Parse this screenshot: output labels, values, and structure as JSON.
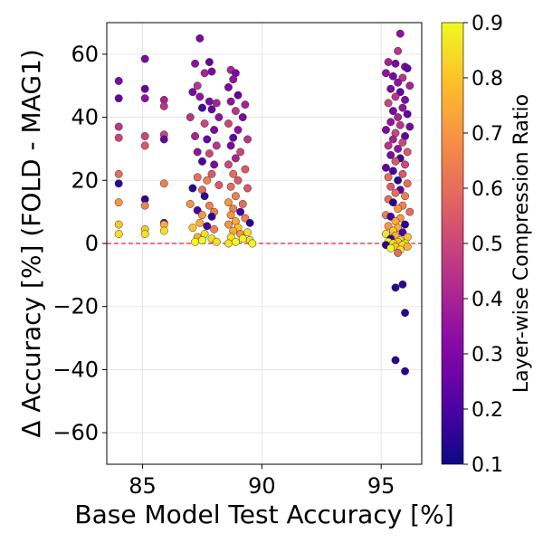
{
  "chart_data": {
    "type": "scatter",
    "xlabel": "Base Model Test Accuracy [%]",
    "ylabel": "Δ Accuracy [%] (FOLD - MAG1)",
    "xlim": [
      83.5,
      96.7
    ],
    "ylim": [
      -70,
      70
    ],
    "xticks": [
      85,
      90,
      95
    ],
    "yticks": [
      60,
      40,
      20,
      0,
      -20,
      -40,
      -60
    ],
    "grid": true,
    "reference_line": {
      "y": 0,
      "color": "#e8232a",
      "style": "dashed"
    },
    "colorbar": {
      "label": "Layer-wise Compression Ratio",
      "range": [
        0.1,
        0.9
      ],
      "ticks": [
        0.9,
        0.8,
        0.7,
        0.6,
        0.5,
        0.4,
        0.3,
        0.2,
        0.1
      ],
      "colormap": "plasma",
      "stops": [
        "#0d0887",
        "#5302a3",
        "#8b0aa5",
        "#b83289",
        "#db5c68",
        "#f48849",
        "#febd2a",
        "#f0f921"
      ]
    },
    "points": [
      {
        "x": 84.0,
        "y": 51.5,
        "c": 0.3
      },
      {
        "x": 84.0,
        "y": 46.0,
        "c": 0.25
      },
      {
        "x": 84.0,
        "y": 37.0,
        "c": 0.45
      },
      {
        "x": 84.0,
        "y": 33.5,
        "c": 0.5
      },
      {
        "x": 84.0,
        "y": 22.0,
        "c": 0.6
      },
      {
        "x": 84.0,
        "y": 19.0,
        "c": 0.15
      },
      {
        "x": 84.0,
        "y": 13.0,
        "c": 0.7
      },
      {
        "x": 84.0,
        "y": 6.0,
        "c": 0.8
      },
      {
        "x": 84.0,
        "y": 3.0,
        "c": 0.85
      },
      {
        "x": 85.1,
        "y": 58.5,
        "c": 0.3
      },
      {
        "x": 85.1,
        "y": 49.0,
        "c": 0.25
      },
      {
        "x": 85.1,
        "y": 46.0,
        "c": 0.35
      },
      {
        "x": 85.1,
        "y": 34.0,
        "c": 0.5
      },
      {
        "x": 85.1,
        "y": 31.0,
        "c": 0.55
      },
      {
        "x": 85.1,
        "y": 14.0,
        "c": 0.15
      },
      {
        "x": 85.1,
        "y": 12.0,
        "c": 0.65
      },
      {
        "x": 85.1,
        "y": 4.5,
        "c": 0.8
      },
      {
        "x": 85.1,
        "y": 3.0,
        "c": 0.85
      },
      {
        "x": 85.9,
        "y": 45.5,
        "c": 0.4
      },
      {
        "x": 85.9,
        "y": 43.5,
        "c": 0.45
      },
      {
        "x": 85.9,
        "y": 34.5,
        "c": 0.5
      },
      {
        "x": 85.9,
        "y": 33.0,
        "c": 0.25
      },
      {
        "x": 85.9,
        "y": 19.0,
        "c": 0.65
      },
      {
        "x": 85.9,
        "y": 6.5,
        "c": 0.2
      },
      {
        "x": 85.9,
        "y": 6.0,
        "c": 0.75
      },
      {
        "x": 85.9,
        "y": 4.0,
        "c": 0.85
      },
      {
        "x": 87.4,
        "y": 65.0,
        "c": 0.3
      },
      {
        "x": 87.2,
        "y": 57.0,
        "c": 0.35
      },
      {
        "x": 87.8,
        "y": 57.5,
        "c": 0.25
      },
      {
        "x": 87.6,
        "y": 54.0,
        "c": 0.4
      },
      {
        "x": 87.9,
        "y": 54.5,
        "c": 0.3
      },
      {
        "x": 87.3,
        "y": 50.0,
        "c": 0.45
      },
      {
        "x": 87.1,
        "y": 48.0,
        "c": 0.3
      },
      {
        "x": 87.4,
        "y": 46.5,
        "c": 0.35
      },
      {
        "x": 87.8,
        "y": 45.0,
        "c": 0.3
      },
      {
        "x": 88.1,
        "y": 44.5,
        "c": 0.4
      },
      {
        "x": 87.5,
        "y": 43.0,
        "c": 0.2
      },
      {
        "x": 87.9,
        "y": 42.5,
        "c": 0.25
      },
      {
        "x": 88.2,
        "y": 40.0,
        "c": 0.35
      },
      {
        "x": 87.0,
        "y": 40.0,
        "c": 0.45
      },
      {
        "x": 87.6,
        "y": 38.0,
        "c": 0.5
      },
      {
        "x": 88.0,
        "y": 36.0,
        "c": 0.3
      },
      {
        "x": 87.2,
        "y": 34.0,
        "c": 0.4
      },
      {
        "x": 87.7,
        "y": 33.0,
        "c": 0.25
      },
      {
        "x": 88.1,
        "y": 31.0,
        "c": 0.45
      },
      {
        "x": 87.3,
        "y": 29.0,
        "c": 0.35
      },
      {
        "x": 87.8,
        "y": 28.5,
        "c": 0.5
      },
      {
        "x": 87.5,
        "y": 26.0,
        "c": 0.2
      },
      {
        "x": 88.0,
        "y": 25.0,
        "c": 0.3
      },
      {
        "x": 87.9,
        "y": 22.0,
        "c": 0.55
      },
      {
        "x": 87.3,
        "y": 21.0,
        "c": 0.6
      },
      {
        "x": 87.7,
        "y": 20.0,
        "c": 0.65
      },
      {
        "x": 88.2,
        "y": 18.5,
        "c": 0.55
      },
      {
        "x": 87.1,
        "y": 17.5,
        "c": 0.15
      },
      {
        "x": 87.5,
        "y": 17.0,
        "c": 0.6
      },
      {
        "x": 87.6,
        "y": 15.0,
        "c": 0.15
      },
      {
        "x": 87.0,
        "y": 12.5,
        "c": 0.7
      },
      {
        "x": 87.8,
        "y": 12.0,
        "c": 0.65
      },
      {
        "x": 87.3,
        "y": 10.5,
        "c": 0.2
      },
      {
        "x": 88.0,
        "y": 10.0,
        "c": 0.65
      },
      {
        "x": 87.5,
        "y": 9.0,
        "c": 0.7
      },
      {
        "x": 87.9,
        "y": 8.5,
        "c": 0.15
      },
      {
        "x": 87.4,
        "y": 6.5,
        "c": 0.75
      },
      {
        "x": 87.7,
        "y": 5.5,
        "c": 0.2
      },
      {
        "x": 87.1,
        "y": 5.0,
        "c": 0.8
      },
      {
        "x": 88.0,
        "y": 4.5,
        "c": 0.65
      },
      {
        "x": 87.6,
        "y": 3.0,
        "c": 0.85
      },
      {
        "x": 87.3,
        "y": 2.0,
        "c": 0.75
      },
      {
        "x": 87.9,
        "y": 1.5,
        "c": 0.85
      },
      {
        "x": 87.5,
        "y": 1.0,
        "c": 0.9
      },
      {
        "x": 88.1,
        "y": 0.5,
        "c": 0.85
      },
      {
        "x": 87.2,
        "y": 0.5,
        "c": 0.9
      },
      {
        "x": 88.7,
        "y": 55.0,
        "c": 0.4
      },
      {
        "x": 88.9,
        "y": 54.0,
        "c": 0.3
      },
      {
        "x": 88.8,
        "y": 52.0,
        "c": 0.35
      },
      {
        "x": 88.6,
        "y": 49.5,
        "c": 0.3
      },
      {
        "x": 89.0,
        "y": 47.0,
        "c": 0.25
      },
      {
        "x": 88.7,
        "y": 45.0,
        "c": 0.35
      },
      {
        "x": 89.3,
        "y": 44.0,
        "c": 0.4
      },
      {
        "x": 88.9,
        "y": 42.0,
        "c": 0.45
      },
      {
        "x": 89.2,
        "y": 40.0,
        "c": 0.3
      },
      {
        "x": 88.6,
        "y": 38.0,
        "c": 0.5
      },
      {
        "x": 89.0,
        "y": 36.0,
        "c": 0.35
      },
      {
        "x": 88.8,
        "y": 33.5,
        "c": 0.25
      },
      {
        "x": 89.4,
        "y": 33.0,
        "c": 0.45
      },
      {
        "x": 88.7,
        "y": 31.0,
        "c": 0.3
      },
      {
        "x": 89.1,
        "y": 29.0,
        "c": 0.5
      },
      {
        "x": 88.9,
        "y": 27.0,
        "c": 0.4
      },
      {
        "x": 88.6,
        "y": 25.0,
        "c": 0.5
      },
      {
        "x": 89.3,
        "y": 23.5,
        "c": 0.55
      },
      {
        "x": 88.8,
        "y": 22.0,
        "c": 0.6
      },
      {
        "x": 89.0,
        "y": 20.0,
        "c": 0.55
      },
      {
        "x": 88.7,
        "y": 18.0,
        "c": 0.6
      },
      {
        "x": 89.4,
        "y": 17.5,
        "c": 0.55
      },
      {
        "x": 88.9,
        "y": 15.0,
        "c": 0.65
      },
      {
        "x": 88.6,
        "y": 13.0,
        "c": 0.7
      },
      {
        "x": 89.2,
        "y": 12.5,
        "c": 0.6
      },
      {
        "x": 88.8,
        "y": 11.0,
        "c": 0.65
      },
      {
        "x": 89.1,
        "y": 10.0,
        "c": 0.2
      },
      {
        "x": 88.7,
        "y": 9.0,
        "c": 0.7
      },
      {
        "x": 89.3,
        "y": 8.0,
        "c": 0.65
      },
      {
        "x": 88.9,
        "y": 7.0,
        "c": 0.75
      },
      {
        "x": 89.5,
        "y": 6.5,
        "c": 0.15
      },
      {
        "x": 88.6,
        "y": 6.0,
        "c": 0.7
      },
      {
        "x": 89.0,
        "y": 5.0,
        "c": 0.8
      },
      {
        "x": 88.8,
        "y": 4.0,
        "c": 0.75
      },
      {
        "x": 89.4,
        "y": 3.5,
        "c": 0.85
      },
      {
        "x": 89.1,
        "y": 3.0,
        "c": 0.7
      },
      {
        "x": 88.7,
        "y": 2.0,
        "c": 0.85
      },
      {
        "x": 89.2,
        "y": 1.5,
        "c": 0.9
      },
      {
        "x": 89.5,
        "y": 1.0,
        "c": 0.85
      },
      {
        "x": 88.9,
        "y": 0.5,
        "c": 0.9
      },
      {
        "x": 88.6,
        "y": 0.0,
        "c": 0.85
      },
      {
        "x": 89.6,
        "y": 0.0,
        "c": 0.9
      },
      {
        "x": 95.8,
        "y": 66.5,
        "c": 0.35
      },
      {
        "x": 95.7,
        "y": 61.0,
        "c": 0.45
      },
      {
        "x": 95.3,
        "y": 57.5,
        "c": 0.4
      },
      {
        "x": 95.6,
        "y": 57.0,
        "c": 0.3
      },
      {
        "x": 96.0,
        "y": 56.0,
        "c": 0.3
      },
      {
        "x": 96.1,
        "y": 55.5,
        "c": 0.25
      },
      {
        "x": 95.2,
        "y": 54.0,
        "c": 0.35
      },
      {
        "x": 95.5,
        "y": 53.0,
        "c": 0.3
      },
      {
        "x": 95.9,
        "y": 52.5,
        "c": 0.45
      },
      {
        "x": 95.7,
        "y": 51.0,
        "c": 0.35
      },
      {
        "x": 96.2,
        "y": 50.0,
        "c": 0.4
      },
      {
        "x": 95.4,
        "y": 49.0,
        "c": 0.3
      },
      {
        "x": 95.8,
        "y": 48.0,
        "c": 0.25
      },
      {
        "x": 95.6,
        "y": 46.5,
        "c": 0.45
      },
      {
        "x": 96.0,
        "y": 45.5,
        "c": 0.3
      },
      {
        "x": 95.3,
        "y": 44.5,
        "c": 0.5
      },
      {
        "x": 95.9,
        "y": 43.0,
        "c": 0.35
      },
      {
        "x": 95.5,
        "y": 42.0,
        "c": 0.3
      },
      {
        "x": 96.1,
        "y": 41.0,
        "c": 0.25
      },
      {
        "x": 95.7,
        "y": 40.0,
        "c": 0.4
      },
      {
        "x": 95.4,
        "y": 38.5,
        "c": 0.35
      },
      {
        "x": 95.8,
        "y": 37.5,
        "c": 0.45
      },
      {
        "x": 96.2,
        "y": 37.0,
        "c": 0.3
      },
      {
        "x": 95.2,
        "y": 36.0,
        "c": 0.3
      },
      {
        "x": 95.6,
        "y": 35.0,
        "c": 0.5
      },
      {
        "x": 96.0,
        "y": 34.0,
        "c": 0.25
      },
      {
        "x": 95.5,
        "y": 33.0,
        "c": 0.4
      },
      {
        "x": 95.9,
        "y": 32.0,
        "c": 0.5
      },
      {
        "x": 95.3,
        "y": 31.0,
        "c": 0.45
      },
      {
        "x": 95.7,
        "y": 30.0,
        "c": 0.35
      },
      {
        "x": 96.1,
        "y": 29.0,
        "c": 0.55
      },
      {
        "x": 95.4,
        "y": 28.0,
        "c": 0.3
      },
      {
        "x": 95.8,
        "y": 27.0,
        "c": 0.2
      },
      {
        "x": 95.6,
        "y": 26.0,
        "c": 0.55
      },
      {
        "x": 96.0,
        "y": 25.0,
        "c": 0.5
      },
      {
        "x": 95.2,
        "y": 24.0,
        "c": 0.25
      },
      {
        "x": 95.5,
        "y": 23.0,
        "c": 0.2
      },
      {
        "x": 95.9,
        "y": 22.0,
        "c": 0.55
      },
      {
        "x": 95.3,
        "y": 21.0,
        "c": 0.6
      },
      {
        "x": 95.7,
        "y": 20.0,
        "c": 0.15
      },
      {
        "x": 96.1,
        "y": 19.0,
        "c": 0.6
      },
      {
        "x": 95.4,
        "y": 18.0,
        "c": 0.55
      },
      {
        "x": 95.8,
        "y": 17.0,
        "c": 0.25
      },
      {
        "x": 95.6,
        "y": 16.0,
        "c": 0.6
      },
      {
        "x": 96.0,
        "y": 15.0,
        "c": 0.65
      },
      {
        "x": 95.3,
        "y": 14.0,
        "c": 0.6
      },
      {
        "x": 95.5,
        "y": 13.0,
        "c": 0.15
      },
      {
        "x": 95.9,
        "y": 12.0,
        "c": 0.65
      },
      {
        "x": 95.7,
        "y": 11.0,
        "c": 0.7
      },
      {
        "x": 96.2,
        "y": 10.0,
        "c": 0.6
      },
      {
        "x": 95.2,
        "y": 9.0,
        "c": 0.65
      },
      {
        "x": 95.4,
        "y": 8.5,
        "c": 0.2
      },
      {
        "x": 95.8,
        "y": 8.0,
        "c": 0.7
      },
      {
        "x": 95.6,
        "y": 7.0,
        "c": 0.75
      },
      {
        "x": 96.0,
        "y": 6.0,
        "c": 0.15
      },
      {
        "x": 95.3,
        "y": 5.5,
        "c": 0.7
      },
      {
        "x": 95.7,
        "y": 5.0,
        "c": 0.75
      },
      {
        "x": 95.5,
        "y": 4.0,
        "c": 0.8
      },
      {
        "x": 95.9,
        "y": 3.5,
        "c": 0.2
      },
      {
        "x": 95.2,
        "y": 3.0,
        "c": 0.85
      },
      {
        "x": 95.6,
        "y": 2.5,
        "c": 0.75
      },
      {
        "x": 96.1,
        "y": 2.0,
        "c": 0.8
      },
      {
        "x": 95.4,
        "y": 1.5,
        "c": 0.15
      },
      {
        "x": 95.8,
        "y": 1.0,
        "c": 0.85
      },
      {
        "x": 95.3,
        "y": 0.5,
        "c": 0.9
      },
      {
        "x": 95.7,
        "y": 0.5,
        "c": 0.8
      },
      {
        "x": 95.5,
        "y": 0.0,
        "c": 0.85
      },
      {
        "x": 96.0,
        "y": 0.0,
        "c": 0.9
      },
      {
        "x": 95.9,
        "y": -0.5,
        "c": 0.85
      },
      {
        "x": 95.2,
        "y": -0.5,
        "c": 0.15
      },
      {
        "x": 95.6,
        "y": -1.0,
        "c": 0.8
      },
      {
        "x": 96.1,
        "y": -1.0,
        "c": 0.75
      },
      {
        "x": 95.4,
        "y": -1.5,
        "c": 0.9
      },
      {
        "x": 95.8,
        "y": -2.0,
        "c": 0.85
      },
      {
        "x": 95.7,
        "y": -3.0,
        "c": 0.6
      },
      {
        "x": 95.6,
        "y": -14.0,
        "c": 0.15
      },
      {
        "x": 95.9,
        "y": -13.0,
        "c": 0.15
      },
      {
        "x": 96.0,
        "y": -22.0,
        "c": 0.15
      },
      {
        "x": 95.6,
        "y": -37.0,
        "c": 0.15
      },
      {
        "x": 96.0,
        "y": -40.5,
        "c": 0.15
      }
    ]
  }
}
